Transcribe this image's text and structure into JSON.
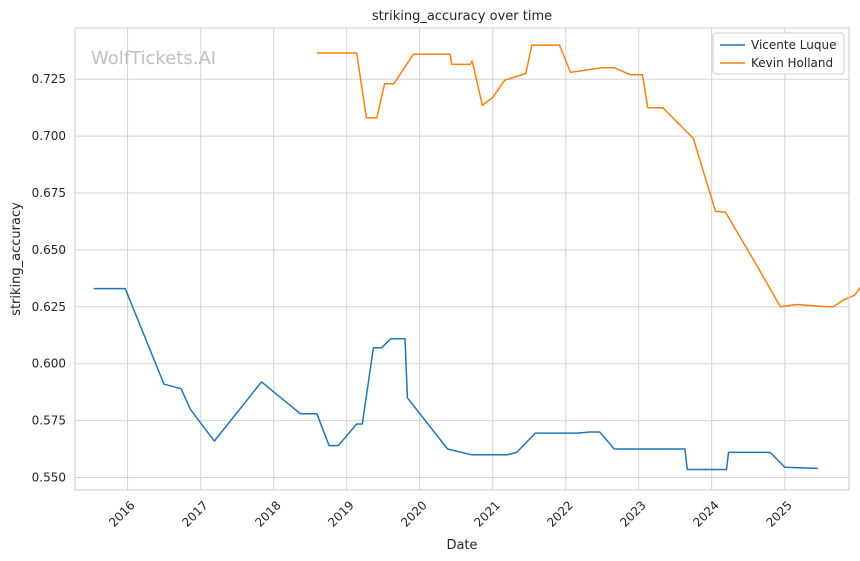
{
  "chart_data": {
    "type": "line",
    "title": "striking_accuracy over time",
    "xlabel": "Date",
    "ylabel": "striking_accuracy",
    "watermark": "WolfTickets.AI",
    "xlim": [
      "2015-04-13",
      "2025-11-18"
    ],
    "ylim": [
      0.5445,
      0.7475
    ],
    "xticks": [
      {
        "date": "2016-01-01",
        "label": "2016"
      },
      {
        "date": "2017-01-01",
        "label": "2017"
      },
      {
        "date": "2018-01-01",
        "label": "2018"
      },
      {
        "date": "2019-01-01",
        "label": "2019"
      },
      {
        "date": "2020-01-01",
        "label": "2020"
      },
      {
        "date": "2021-01-01",
        "label": "2021"
      },
      {
        "date": "2022-01-01",
        "label": "2022"
      },
      {
        "date": "2023-01-01",
        "label": "2023"
      },
      {
        "date": "2024-01-01",
        "label": "2024"
      },
      {
        "date": "2025-01-01",
        "label": "2025"
      }
    ],
    "yticks": [
      {
        "value": 0.55,
        "label": "0.550"
      },
      {
        "value": 0.575,
        "label": "0.575"
      },
      {
        "value": 0.6,
        "label": "0.600"
      },
      {
        "value": 0.625,
        "label": "0.625"
      },
      {
        "value": 0.65,
        "label": "0.650"
      },
      {
        "value": 0.675,
        "label": "0.675"
      },
      {
        "value": 0.7,
        "label": "0.700"
      },
      {
        "value": 0.725,
        "label": "0.725"
      }
    ],
    "grid": true,
    "legend_position": "top-right",
    "series": [
      {
        "name": "Vicente Luque",
        "color": "#1f77b4",
        "points": [
          [
            "2015-07-15",
            0.633
          ],
          [
            "2015-12-20",
            0.633
          ],
          [
            "2016-07-01",
            0.591
          ],
          [
            "2016-09-25",
            0.589
          ],
          [
            "2016-11-10",
            0.58
          ],
          [
            "2017-03-10",
            0.566
          ],
          [
            "2017-11-01",
            0.592
          ],
          [
            "2018-05-15",
            0.578
          ],
          [
            "2018-08-05",
            0.578
          ],
          [
            "2018-10-05",
            0.564
          ],
          [
            "2018-11-20",
            0.564
          ],
          [
            "2019-02-20",
            0.5735
          ],
          [
            "2019-03-20",
            0.5735
          ],
          [
            "2019-05-15",
            0.607
          ],
          [
            "2019-06-25",
            0.607
          ],
          [
            "2019-08-10",
            0.611
          ],
          [
            "2019-10-20",
            0.611
          ],
          [
            "2019-11-01",
            0.585
          ],
          [
            "2020-05-20",
            0.5625
          ],
          [
            "2020-09-15",
            0.56
          ],
          [
            "2021-03-15",
            0.56
          ],
          [
            "2021-05-01",
            0.561
          ],
          [
            "2021-08-01",
            0.5695
          ],
          [
            "2022-03-01",
            0.5695
          ],
          [
            "2022-05-01",
            0.57
          ],
          [
            "2022-06-20",
            0.57
          ],
          [
            "2022-09-01",
            0.5625
          ],
          [
            "2023-08-20",
            0.5625
          ],
          [
            "2023-09-01",
            0.5535
          ],
          [
            "2024-03-15",
            0.5535
          ],
          [
            "2024-03-25",
            0.561
          ],
          [
            "2024-10-20",
            0.561
          ],
          [
            "2025-01-01",
            0.5545
          ],
          [
            "2025-06-15",
            0.554
          ]
        ]
      },
      {
        "name": "Kevin Holland",
        "color": "#ff7f0e",
        "points": [
          [
            "2018-08-05",
            0.7365
          ],
          [
            "2019-02-20",
            0.7365
          ],
          [
            "2019-04-10",
            0.708
          ],
          [
            "2019-06-01",
            0.708
          ],
          [
            "2019-07-10",
            0.723
          ],
          [
            "2019-08-25",
            0.723
          ],
          [
            "2019-12-01",
            0.736
          ],
          [
            "2020-06-01",
            0.736
          ],
          [
            "2020-06-10",
            0.7315
          ],
          [
            "2020-09-10",
            0.7315
          ],
          [
            "2020-09-20",
            0.733
          ],
          [
            "2020-11-10",
            0.7135
          ],
          [
            "2021-01-01",
            0.717
          ],
          [
            "2021-03-01",
            0.7245
          ],
          [
            "2021-06-15",
            0.7275
          ],
          [
            "2021-07-15",
            0.74
          ],
          [
            "2021-12-01",
            0.74
          ],
          [
            "2022-01-25",
            0.728
          ],
          [
            "2022-07-01",
            0.73
          ],
          [
            "2022-09-01",
            0.73
          ],
          [
            "2022-11-20",
            0.727
          ],
          [
            "2023-01-20",
            0.727
          ],
          [
            "2023-02-15",
            0.7125
          ],
          [
            "2023-05-01",
            0.7125
          ],
          [
            "2023-10-01",
            0.699
          ],
          [
            "2024-01-20",
            0.667
          ],
          [
            "2024-03-10",
            0.6665
          ],
          [
            "2024-08-15",
            0.643
          ],
          [
            "2024-12-10",
            0.625
          ],
          [
            "2025-03-01",
            0.626
          ],
          [
            "2025-08-01",
            0.625
          ],
          [
            "2025-09-01",
            0.625
          ],
          [
            "2025-10-20",
            0.628
          ],
          [
            "2025-12-15",
            0.63
          ],
          [
            "2026-02-25",
            0.6385
          ]
        ]
      }
    ]
  }
}
